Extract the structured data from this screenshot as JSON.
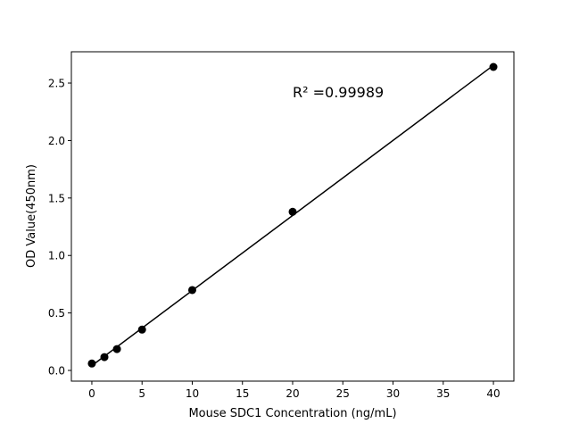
{
  "chart_data": {
    "type": "scatter",
    "title": "",
    "xlabel": "Mouse SDC1 Concentration (ng/mL)",
    "ylabel": "OD Value(450nm)",
    "annotation": "R² =0.99989",
    "xlim": [
      -2.04,
      42.04
    ],
    "ylim": [
      -0.093,
      2.772
    ],
    "xticks": [
      0,
      5,
      10,
      15,
      20,
      25,
      30,
      35,
      40
    ],
    "yticks": [
      0.0,
      0.5,
      1.0,
      1.5,
      2.0,
      2.5
    ],
    "xtick_labels": [
      "0",
      "5",
      "10",
      "15",
      "20",
      "25",
      "30",
      "35",
      "40"
    ],
    "ytick_labels": [
      "0.0",
      "0.5",
      "1.0",
      "1.5",
      "2.0",
      "2.5"
    ],
    "grid": false,
    "series": [
      {
        "x": [
          0,
          1.25,
          2.5,
          5,
          10,
          20,
          40
        ],
        "y": [
          0.06,
          0.116,
          0.186,
          0.355,
          0.699,
          1.38,
          2.64
        ],
        "color": "#000000",
        "fit_line": "linear"
      }
    ]
  }
}
